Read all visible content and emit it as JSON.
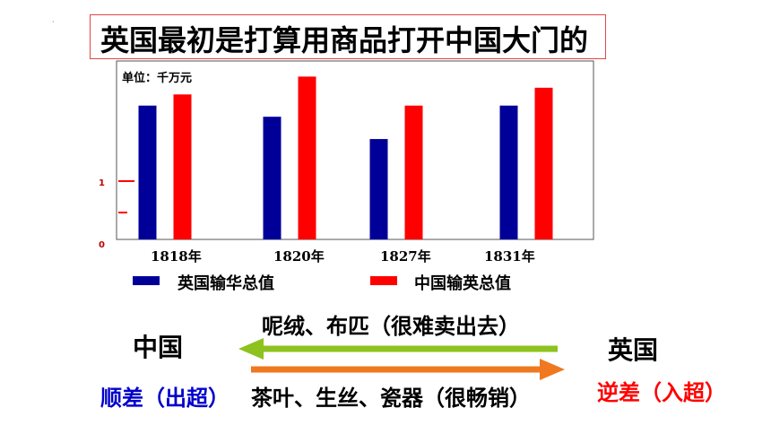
{
  "title": "英国最初是打算用商品打开中国大门的",
  "chart_data": {
    "type": "bar",
    "unit_label": "单位：千万元",
    "categories": [
      "1818年",
      "1820年",
      "1827年",
      "1831年"
    ],
    "series": [
      {
        "name": "英国输华总值",
        "color": "#000099",
        "values": [
          6.0,
          5.5,
          4.5,
          6.0
        ]
      },
      {
        "name": "中国输英总值",
        "color": "#ff0000",
        "values": [
          6.5,
          7.3,
          6.0,
          6.8
        ]
      }
    ],
    "y_ticks": [
      "0",
      "1"
    ],
    "ylim": [
      0,
      8
    ]
  },
  "trade": {
    "china": "中国",
    "britain": "英国",
    "to_china_goods": "呢绒、布匹（很难卖出去）",
    "to_britain_goods": "茶叶、生丝、瓷器（很畅销）",
    "china_balance": "顺差（出超）",
    "britain_balance": "逆差（入超）",
    "colors": {
      "green_arrow": "#8dc21f",
      "orange_arrow": "#f07820",
      "china_balance": "#0000cc",
      "britain_balance": "#ff0000"
    }
  }
}
